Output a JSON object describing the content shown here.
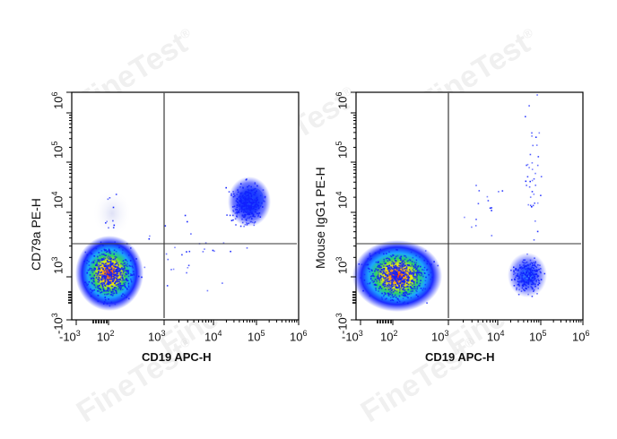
{
  "chart_data": [
    {
      "type": "scatter",
      "subtype": "flow-cytometry-density-dot-plot",
      "title": "",
      "xlabel": "CD19 APC-H",
      "ylabel": "CD79a PE-H",
      "x_scale": "biexponential",
      "y_scale": "biexponential",
      "x_ticks": [
        "-10^3",
        "10^2",
        "10^3",
        "10^4",
        "10^5",
        "10^6"
      ],
      "y_ticks": [
        "-10^3",
        "10^3",
        "10^4",
        "10^5",
        "10^6"
      ],
      "xlim": [
        "-10^3",
        "10^6"
      ],
      "ylim": [
        "-10^3",
        "10^6"
      ],
      "gates": {
        "vertical_x": 1200,
        "horizontal_y": 1500
      },
      "populations": [
        {
          "name": "CD19- CD79a- (lower-left)",
          "center_x": 100,
          "center_y": 500,
          "density": "high",
          "colors": "blue-green-yellow-red"
        },
        {
          "name": "CD19+ CD79a+ (upper-right)",
          "center_x": 80000,
          "center_y": 7000,
          "density": "medium",
          "colors": "blue"
        }
      ],
      "quadrants": [
        "upper-left",
        "upper-right",
        "lower-left",
        "lower-right"
      ]
    },
    {
      "type": "scatter",
      "subtype": "flow-cytometry-density-dot-plot",
      "title": "",
      "xlabel": "CD19 APC-H",
      "ylabel": "Mouse IgG1 PE-H",
      "x_scale": "biexponential",
      "y_scale": "biexponential",
      "x_ticks": [
        "-10^3",
        "10^2",
        "10^3",
        "10^4",
        "10^5",
        "10^6"
      ],
      "y_ticks": [
        "-10^3",
        "10^3",
        "10^4",
        "10^5",
        "10^6"
      ],
      "xlim": [
        "-10^3",
        "10^6"
      ],
      "ylim": [
        "-10^3",
        "10^6"
      ],
      "gates": {
        "vertical_x": 1200,
        "horizontal_y": 1500
      },
      "populations": [
        {
          "name": "CD19- (lower-left)",
          "center_x": 100,
          "center_y": 400,
          "density": "high",
          "colors": "blue-green-yellow-red"
        },
        {
          "name": "CD19+ isotype (lower-right)",
          "center_x": 60000,
          "center_y": 400,
          "density": "medium",
          "colors": "blue"
        }
      ],
      "quadrants": [
        "upper-left",
        "upper-right",
        "lower-left",
        "lower-right"
      ]
    }
  ],
  "plots": [
    {
      "ylabel": "CD79a PE-H",
      "xlabel": "CD19 APC-H",
      "xticks": [
        {
          "base": "-10",
          "exp": "3"
        },
        {
          "base": "10",
          "exp": "2"
        },
        {
          "base": "10",
          "exp": "3"
        },
        {
          "base": "10",
          "exp": "4"
        },
        {
          "base": "10",
          "exp": "5"
        },
        {
          "base": "10",
          "exp": "6"
        }
      ],
      "yticks": [
        {
          "base": "-10",
          "exp": "3"
        },
        {
          "base": "10",
          "exp": "3"
        },
        {
          "base": "10",
          "exp": "4"
        },
        {
          "base": "10",
          "exp": "5"
        },
        {
          "base": "10",
          "exp": "6"
        }
      ]
    },
    {
      "ylabel": "Mouse IgG1 PE-H",
      "xlabel": "CD19 APC-H",
      "xticks": [
        {
          "base": "-10",
          "exp": "3"
        },
        {
          "base": "10",
          "exp": "2"
        },
        {
          "base": "10",
          "exp": "3"
        },
        {
          "base": "10",
          "exp": "4"
        },
        {
          "base": "10",
          "exp": "5"
        },
        {
          "base": "10",
          "exp": "6"
        }
      ],
      "yticks": [
        {
          "base": "-10",
          "exp": "3"
        },
        {
          "base": "10",
          "exp": "3"
        },
        {
          "base": "10",
          "exp": "4"
        },
        {
          "base": "10",
          "exp": "5"
        },
        {
          "base": "10",
          "exp": "6"
        }
      ]
    }
  ],
  "watermark": {
    "text": "FineTest",
    "symbol": "®"
  },
  "colors": {
    "low": "#0000ff",
    "mid": "#00c060",
    "high_mid": "#ffff00",
    "high": "#ff0000",
    "gate": "#333333",
    "axis": "#000000"
  }
}
